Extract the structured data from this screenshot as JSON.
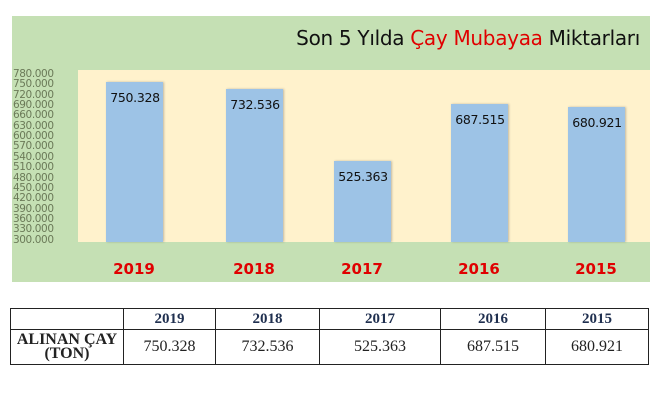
{
  "chart": {
    "title_parts": {
      "pre": "Son 5 Yılda ",
      "highlight": "Çay Mubayaa",
      "post": " Miktarları"
    },
    "y_ticks": [
      "780.000",
      "750.000",
      "720.000",
      "690.000",
      "660.000",
      "630.000",
      "600.000",
      "570.000",
      "540.000",
      "510.000",
      "480.000",
      "450.000",
      "420.000",
      "390.000",
      "360.000",
      "330.000",
      "300.000"
    ],
    "bars": [
      {
        "year": "2019",
        "label": "750.328"
      },
      {
        "year": "2018",
        "label": "732.536"
      },
      {
        "year": "2017",
        "label": "525.363"
      },
      {
        "year": "2016",
        "label": "687.515"
      },
      {
        "year": "2015",
        "label": "680.921"
      }
    ]
  },
  "table": {
    "headers": [
      "",
      "2019",
      "2018",
      "2017",
      "2016",
      "2015"
    ],
    "row_label_line1": "ALINAN ÇAY",
    "row_label_line2": "(TON)",
    "values": [
      "750.328",
      "732.536",
      "525.363",
      "687.515",
      "680.921"
    ]
  },
  "colors": {
    "panel_bg": "#c5e0b4",
    "plot_bg": "#fff2cc",
    "bar": "#9dc3e6",
    "accent_red": "#e00000"
  },
  "chart_data": {
    "type": "bar",
    "title": "Son 5 Yılda Çay Mubayaa Miktarları",
    "categories": [
      "2019",
      "2018",
      "2017",
      "2016",
      "2015"
    ],
    "values": [
      750328,
      732536,
      525363,
      687515,
      680921
    ],
    "xlabel": "",
    "ylabel": "",
    "ylim": [
      300000,
      780000
    ],
    "y_tick_step": 30000,
    "grid": false,
    "legend": "none",
    "data_labels": [
      "750.328",
      "732.536",
      "525.363",
      "687.515",
      "680.921"
    ],
    "unit": "ton"
  }
}
